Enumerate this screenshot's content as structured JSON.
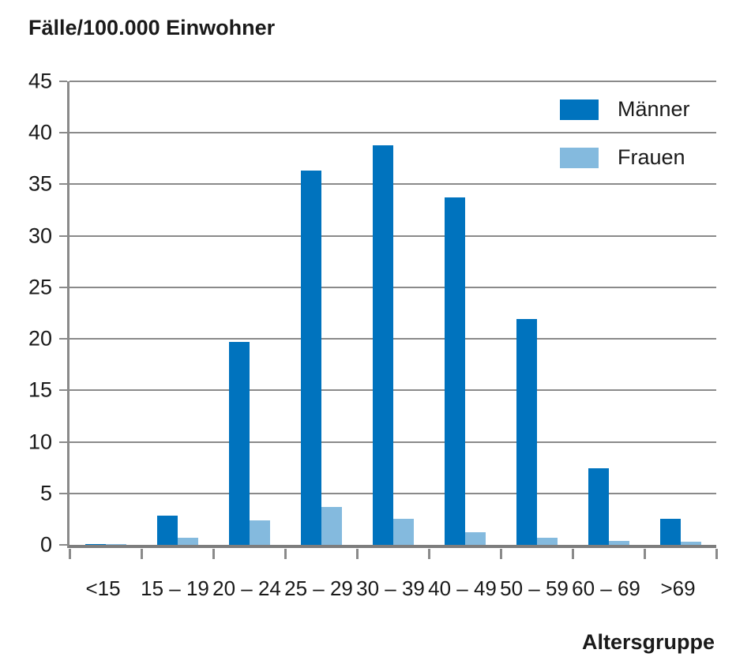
{
  "title": "Fälle/100.000 Einwohner",
  "x_axis_title": "Altersgruppe",
  "legend": {
    "maenner_label": "Männer",
    "frauen_label": "Frauen"
  },
  "colors": {
    "maenner": "#0073BE",
    "frauen": "#84BADE",
    "grid": "#8a8a8a",
    "axis": "#7d7d7d",
    "text": "#1a1a1a"
  },
  "chart_data": {
    "type": "bar",
    "title": "Fälle/100.000 Einwohner",
    "xlabel": "Altersgruppe",
    "ylabel": "Fälle/100.000 Einwohner",
    "categories": [
      "<15",
      "15 – 19",
      "20 – 24",
      "25 – 29",
      "30 – 39",
      "40 – 49",
      "50 – 59",
      "60 – 69",
      ">69"
    ],
    "series": [
      {
        "name": "Männer",
        "color": "#0073BE",
        "values": [
          0.1,
          2.8,
          19.7,
          36.3,
          38.8,
          33.7,
          21.9,
          7.4,
          2.5
        ]
      },
      {
        "name": "Frauen",
        "color": "#84BADE",
        "values": [
          0.1,
          0.7,
          2.4,
          3.7,
          2.5,
          1.2,
          0.7,
          0.4,
          0.3
        ]
      }
    ],
    "ylim": [
      0,
      45
    ],
    "ytick_step": 5,
    "yticks": [
      0,
      5,
      10,
      15,
      20,
      25,
      30,
      35,
      40,
      45
    ],
    "grid": true,
    "legend_position": "top-right",
    "legend_entries": [
      "Männer",
      "Frauen"
    ]
  }
}
